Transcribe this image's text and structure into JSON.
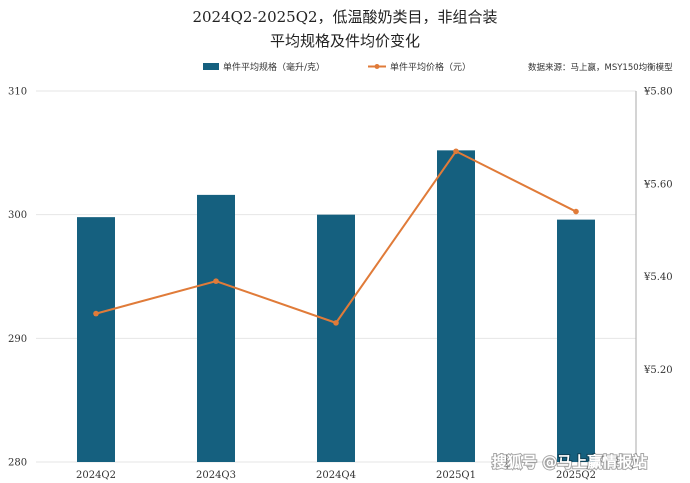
{
  "title_line1": "2024Q2-2025Q2，低温酸奶类目，非组合装",
  "title_line2": "平均规格及件均价变化",
  "source": "数据来源：马上赢，MSY150均衡模型",
  "watermark": "搜狐号 @马上赢情报站",
  "colors": {
    "bar": "#15607f",
    "line": "#e07b39",
    "grid": "#e6e6e6",
    "axis": "#aaaaaa"
  },
  "chart_data": {
    "type": "bar+line",
    "categories": [
      "2024Q2",
      "2024Q3",
      "2024Q4",
      "2025Q1",
      "2025Q2"
    ],
    "series": [
      {
        "name": "单件平均规格（毫升/克）",
        "type": "bar",
        "axis": "left",
        "values": [
          299.8,
          301.6,
          300.0,
          305.2,
          299.6
        ]
      },
      {
        "name": "单件平均价格（元）",
        "type": "line",
        "axis": "right",
        "values": [
          5.32,
          5.39,
          5.3,
          5.67,
          5.54
        ]
      }
    ],
    "y_left": {
      "range": [
        280,
        310
      ],
      "ticks": [
        "310",
        "300",
        "290",
        "280"
      ],
      "tick_values": [
        310,
        300,
        290,
        280
      ]
    },
    "y_right": {
      "range": [
        5.0,
        5.8
      ],
      "ticks": [
        "¥5.80",
        "¥5.60",
        "¥5.40",
        "¥5.20"
      ],
      "tick_values": [
        5.8,
        5.6,
        5.4,
        5.2
      ]
    },
    "grid": true,
    "legend": "top-center"
  }
}
